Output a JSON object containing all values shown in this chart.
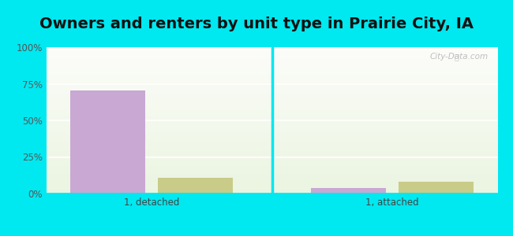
{
  "title": "Owners and renters by unit type in Prairie City, IA",
  "categories": [
    "1, detached",
    "1, attached"
  ],
  "owner_values": [
    70.5,
    4.0
  ],
  "renter_values": [
    11.0,
    8.0
  ],
  "owner_color": "#c9a8d4",
  "renter_color": "#c8cc88",
  "bar_width": 0.25,
  "ylim": [
    0,
    100
  ],
  "yticks": [
    0,
    25,
    50,
    75,
    100
  ],
  "yticklabels": [
    "0%",
    "25%",
    "50%",
    "75%",
    "100%"
  ],
  "background_outer": "#00e8f0",
  "watermark": "City-Data.com",
  "title_fontsize": 14,
  "axis_fontsize": 8.5
}
